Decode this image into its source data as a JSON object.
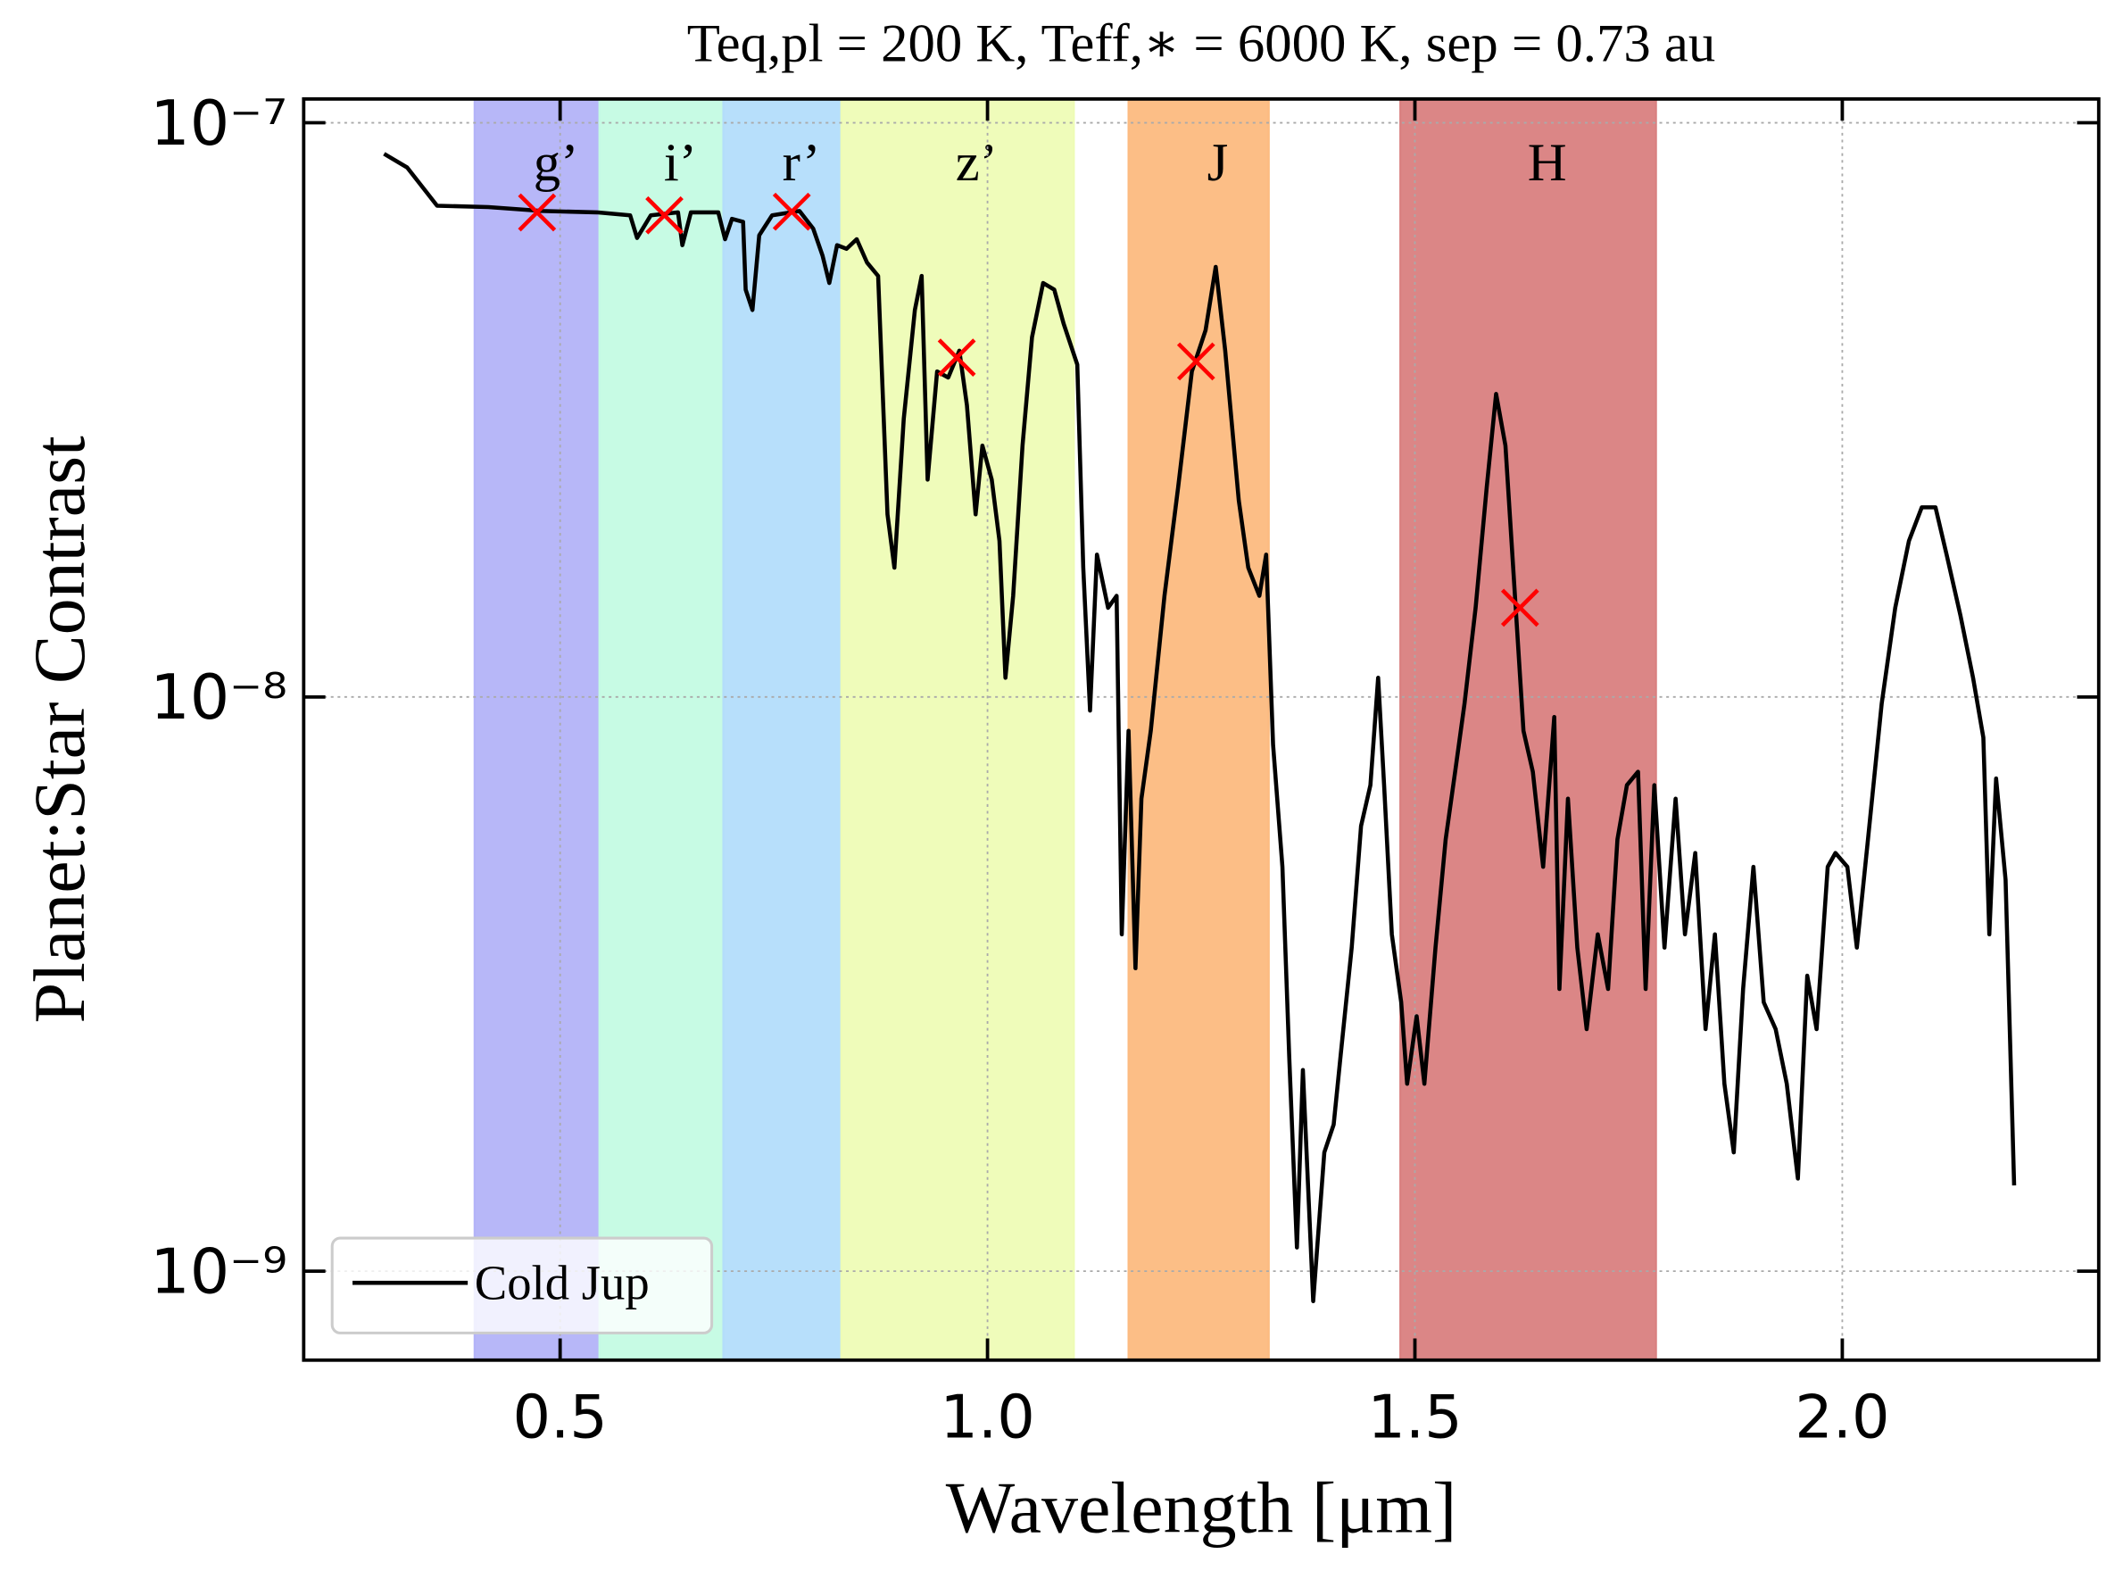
{
  "chart_data": {
    "type": "line",
    "title": "Teq,pl = 200 K, Teff,∗ = 6000 K, sep = 0.73 au",
    "x_label": "Wavelength [μm]",
    "y_label": "Planet:Star Contrast",
    "yscale": "log",
    "grid": true,
    "legend": "lower left",
    "xlim": [
      0.2,
      2.3
    ],
    "ylim": [
      7e-10,
      1.1e-07
    ],
    "xticks": [
      0.5,
      {
        "value": 1,
        "label": "1.0"
      },
      1.5,
      {
        "value": 2,
        "label": "2.0"
      }
    ],
    "yticks": [
      {
        "value": 1e-09,
        "label": "10⁻⁹"
      },
      {
        "value": 1e-08,
        "label": "10⁻⁸"
      },
      {
        "value": 1e-07,
        "label": "10⁻⁷"
      }
    ],
    "bands": [
      {
        "label": "g’",
        "range": [
          0.4,
          0.546
        ],
        "color": "#b3b3f8"
      },
      {
        "label": "i’",
        "range": [
          0.546,
          0.691
        ],
        "color": "#c4fbe3"
      },
      {
        "label": "r’",
        "range": [
          0.691,
          0.829
        ],
        "color": "#b3ddfb"
      },
      {
        "label": "z’",
        "range": [
          0.829,
          1.101
        ],
        "color": "#eefcb6"
      },
      {
        "label": "J",
        "range": [
          1.165,
          1.329
        ],
        "color": "#fcbb80"
      },
      {
        "label": "H",
        "range": [
          1.483,
          1.782
        ],
        "color": "#d98080"
      }
    ],
    "x": [
      0.294,
      0.321,
      0.356,
      0.416,
      0.479,
      0.543,
      0.582,
      0.59,
      0.606,
      0.638,
      0.643,
      0.653,
      0.685,
      0.693,
      0.701,
      0.714,
      0.717,
      0.725,
      0.733,
      0.748,
      0.78,
      0.796,
      0.807,
      0.815,
      0.824,
      0.835,
      0.847,
      0.859,
      0.872,
      0.883,
      0.891,
      0.902,
      0.915,
      0.923,
      0.93,
      0.941,
      0.954,
      0.967,
      0.976,
      0.986,
      0.994,
      1.005,
      1.014,
      1.021,
      1.03,
      1.041,
      1.052,
      1.065,
      1.078,
      1.089,
      1.105,
      1.112,
      1.12,
      1.128,
      1.141,
      1.151,
      1.157,
      1.165,
      1.173,
      1.18,
      1.191,
      1.207,
      1.223,
      1.239,
      1.255,
      1.267,
      1.278,
      1.294,
      1.305,
      1.318,
      1.326,
      1.334,
      1.345,
      1.353,
      1.362,
      1.369,
      1.381,
      1.394,
      1.405,
      1.413,
      1.426,
      1.437,
      1.448,
      1.457,
      1.464,
      1.473,
      1.484,
      1.491,
      1.502,
      1.511,
      1.524,
      1.536,
      1.547,
      1.558,
      1.571,
      1.584,
      1.595,
      1.606,
      1.615,
      1.627,
      1.638,
      1.65,
      1.663,
      1.669,
      1.679,
      1.69,
      1.701,
      1.714,
      1.726,
      1.737,
      1.748,
      1.761,
      1.77,
      1.78,
      1.792,
      1.805,
      1.816,
      1.828,
      1.84,
      1.851,
      1.862,
      1.873,
      1.884,
      1.896,
      1.908,
      1.922,
      1.935,
      1.948,
      1.959,
      1.97,
      1.983,
      1.992,
      2.006,
      2.017,
      2.03,
      2.046,
      2.062,
      2.078,
      2.093,
      2.109,
      2.122,
      2.138,
      2.153,
      2.165,
      2.172,
      2.18,
      2.191,
      2.201
    ],
    "series": [
      {
        "name": "Cold Jup",
        "color": "#000000",
        "values": [
          8.83e-08,
          8.36e-08,
          7.17e-08,
          7.13e-08,
          7.02e-08,
          6.98e-08,
          6.9e-08,
          6.3e-08,
          6.9e-08,
          6.98e-08,
          6.12e-08,
          6.98e-08,
          6.98e-08,
          6.27e-08,
          6.8e-08,
          6.72e-08,
          5.12e-08,
          4.72e-08,
          6.37e-08,
          6.9e-08,
          7.02e-08,
          6.54e-08,
          5.87e-08,
          5.26e-08,
          6.12e-08,
          6.03e-08,
          6.27e-08,
          5.71e-08,
          5.41e-08,
          2.08e-08,
          1.68e-08,
          3.05e-08,
          4.72e-08,
          5.41e-08,
          2.39e-08,
          3.69e-08,
          3.6e-08,
          4.01e-08,
          3.22e-08,
          2.08e-08,
          2.74e-08,
          2.39e-08,
          1.87e-08,
          1.08e-08,
          1.5e-08,
          2.74e-08,
          4.23e-08,
          5.26e-08,
          5.12e-08,
          4.47e-08,
          3.79e-08,
          1.68e-08,
          9.47e-09,
          1.77e-08,
          1.43e-08,
          1.5e-08,
          3.86e-09,
          8.73e-09,
          3.37e-09,
          6.65e-09,
          8.73e-09,
          1.5e-08,
          2.32e-08,
          3.69e-08,
          4.35e-08,
          5.61e-08,
          4.01e-08,
          2.2e-08,
          1.68e-08,
          1.5e-08,
          1.77e-08,
          8.26e-09,
          5.06e-09,
          2.37e-09,
          1.1e-09,
          2.24e-09,
          8.87e-10,
          1.61e-09,
          1.8e-09,
          2.37e-09,
          3.66e-09,
          5.96e-09,
          7.02e-09,
          1.08e-08,
          7.02e-09,
          3.86e-09,
          2.94e-09,
          2.12e-09,
          2.78e-09,
          2.12e-09,
          3.66e-09,
          5.65e-09,
          7.41e-09,
          9.73e-09,
          1.43e-08,
          2.32e-08,
          3.37e-08,
          2.74e-08,
          1.68e-08,
          8.73e-09,
          7.41e-09,
          5.06e-09,
          9.23e-09,
          3.1e-09,
          6.65e-09,
          3.66e-09,
          2.64e-09,
          3.86e-09,
          3.1e-09,
          5.65e-09,
          7.02e-09,
          7.41e-09,
          3.1e-09,
          7.02e-09,
          3.66e-09,
          6.65e-09,
          3.86e-09,
          5.35e-09,
          2.64e-09,
          3.86e-09,
          2.12e-09,
          1.61e-09,
          3.1e-09,
          5.06e-09,
          2.94e-09,
          2.64e-09,
          2.12e-09,
          1.45e-09,
          3.27e-09,
          2.64e-09,
          5.06e-09,
          5.35e-09,
          5.06e-09,
          3.66e-09,
          5.65e-09,
          9.73e-09,
          1.43e-08,
          1.87e-08,
          2.14e-08,
          2.14e-08,
          1.77e-08,
          1.39e-08,
          1.08e-08,
          8.5e-09,
          3.86e-09,
          7.21e-09,
          4.8e-09,
          1.41e-09
        ]
      }
    ],
    "markers": {
      "color": "#ff0000",
      "x": [
        0.473,
        0.622,
        0.771,
        0.964,
        1.244,
        1.623
      ],
      "values": [
        6.98e-08,
        6.9e-08,
        7e-08,
        3.9e-08,
        3.84e-08,
        1.43e-08
      ]
    }
  }
}
